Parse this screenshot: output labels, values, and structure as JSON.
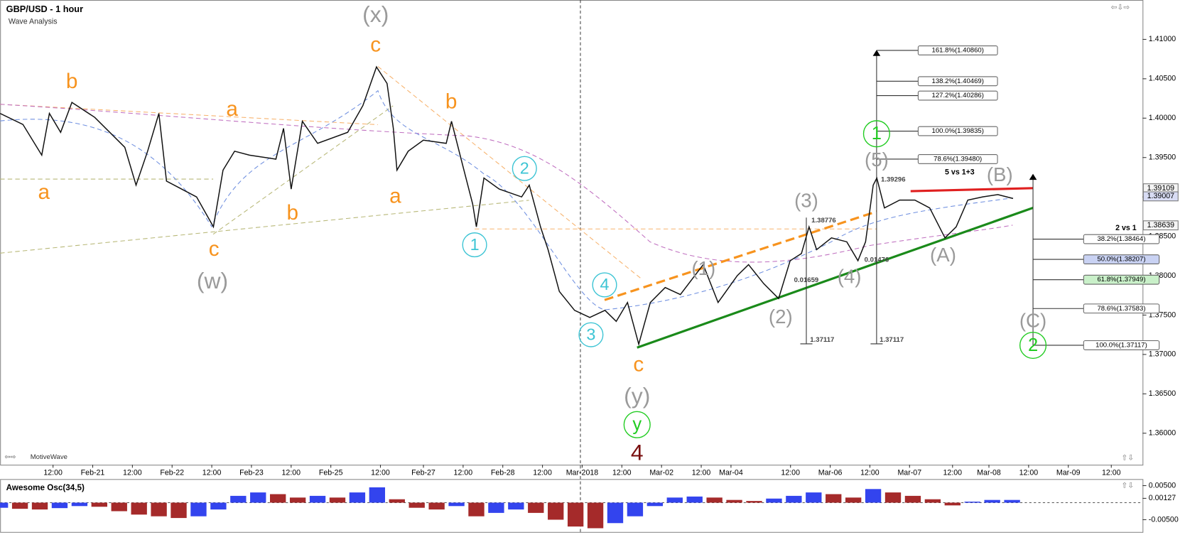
{
  "chart_data": [
    {
      "type": "line",
      "title": "GBP/USD - 1 hour",
      "subtitle": "Wave Analysis",
      "watermark": "MotiveWave",
      "x": [
        0,
        6.9,
        12.6,
        14.9,
        18.3,
        21.7,
        28.6,
        37.7,
        41.1,
        44.6,
        48,
        50.3,
        59.4,
        64.5,
        67.4,
        70.9,
        75.4,
        83.4,
        85.7,
        88,
        91.4,
        96,
        105.1,
        109.7,
        113.8,
        117,
        118.9,
        120,
        123.4,
        128,
        134.9,
        136.5,
        139.4,
        142.9,
        144,
        146.3,
        150.9,
        157.7,
        160,
        163.4,
        165.7,
        169.1,
        173.7,
        178.3,
        182.9,
        186.3,
        189.7,
        193.1,
        196.6,
        201.1,
        205.7,
        212.6,
        217.1,
        222.9,
        226.3,
        230.9,
        235.4,
        238.9,
        242.3,
        244.6,
        246.9,
        251.4,
        256,
        259.4,
        261.7,
        264,
        265.1,
        267.4,
        272,
        276.6,
        281.1,
        285.7,
        289.1,
        292.6,
        297.1,
        301.7,
        306.3
      ],
      "series": [
        {
          "color": "#111111",
          "values": [
            1.4006,
            1.3992,
            1.3953,
            1.4006,
            1.3982,
            1.402,
            1.4001,
            1.3963,
            1.3915,
            1.3958,
            1.4006,
            1.392,
            1.39,
            1.3862,
            1.3934,
            1.3958,
            1.3953,
            1.3948,
            1.3987,
            1.391,
            1.3996,
            1.3968,
            1.3982,
            1.4016,
            1.4065,
            1.4044,
            1.3987,
            1.3934,
            1.3958,
            1.3972,
            1.3968,
            1.3996,
            1.3948,
            1.3891,
            1.3862,
            1.3924,
            1.391,
            1.39,
            1.3915,
            1.3862,
            1.3833,
            1.378,
            1.3756,
            1.3747,
            1.3756,
            1.3742,
            1.3766,
            1.3713,
            1.3766,
            1.3785,
            1.3776,
            1.3814,
            1.3766,
            1.38,
            1.3814,
            1.379,
            1.3771,
            1.3819,
            1.3828,
            1.3862,
            1.3833,
            1.3848,
            1.3843,
            1.3819,
            1.3843,
            1.3915,
            1.3924,
            1.3886,
            1.3896,
            1.3896,
            1.3886,
            1.3848,
            1.3862,
            1.3896,
            1.39,
            1.3903,
            1.3898
          ]
        }
      ],
      "xlim": [
        0,
        345
      ],
      "ylim": [
        1.356,
        1.415
      ],
      "xticks": [
        {
          "value": 16,
          "label": "12:00"
        },
        {
          "value": 28,
          "label": "Feb-21"
        },
        {
          "value": 40,
          "label": "12:00"
        },
        {
          "value": 52,
          "label": "Feb-22"
        },
        {
          "value": 64,
          "label": "12:00"
        },
        {
          "value": 76,
          "label": "Feb-23"
        },
        {
          "value": 88,
          "label": "12:00"
        },
        {
          "value": 100,
          "label": "Feb-25"
        },
        {
          "value": 115,
          "label": "12:00"
        },
        {
          "value": 128,
          "label": "Feb-27"
        },
        {
          "value": 140,
          "label": "12:00"
        },
        {
          "value": 152,
          "label": "Feb-28"
        },
        {
          "value": 164,
          "label": "12:00"
        },
        {
          "value": 176,
          "label": "Mar-2018"
        },
        {
          "value": 188,
          "label": "12:00"
        },
        {
          "value": 200,
          "label": "Mar-02"
        },
        {
          "value": 212,
          "label": "12:00"
        },
        {
          "value": 221,
          "label": "Mar-04"
        },
        {
          "value": 239,
          "label": "12:00"
        },
        {
          "value": 251,
          "label": "Mar-06"
        },
        {
          "value": 263,
          "label": "12:00"
        },
        {
          "value": 275,
          "label": "Mar-07"
        },
        {
          "value": 288,
          "label": "12:00"
        },
        {
          "value": 299,
          "label": "Mar-08"
        },
        {
          "value": 311,
          "label": "12:00"
        },
        {
          "value": 323,
          "label": "Mar-09"
        },
        {
          "value": 336,
          "label": "12:00"
        }
      ],
      "yticks": [
        {
          "value": 1.36,
          "label": "1.36000"
        },
        {
          "value": 1.365,
          "label": "1.36500"
        },
        {
          "value": 1.37,
          "label": "1.37000"
        },
        {
          "value": 1.375,
          "label": "1.37500"
        },
        {
          "value": 1.38,
          "label": "1.38000"
        },
        {
          "value": 1.385,
          "label": "1.38500"
        },
        {
          "value": 1.39,
          "label": "1.39000"
        },
        {
          "value": 1.395,
          "label": "1.39500"
        },
        {
          "value": 1.4,
          "label": "1.40000"
        },
        {
          "value": 1.405,
          "label": "1.40500"
        },
        {
          "value": 1.41,
          "label": "1.41000"
        }
      ],
      "price_tags": [
        {
          "value": 1.39109,
          "label": "1.39109"
        },
        {
          "value": 1.39007,
          "label": "1.39007"
        },
        {
          "value": 1.38639,
          "label": "1.38639"
        }
      ],
      "fib_extension": [
        {
          "value": 1.4086,
          "label": "161.8%(1.40860)"
        },
        {
          "value": 1.40469,
          "label": "138.2%(1.40469)"
        },
        {
          "value": 1.40286,
          "label": "127.2%(1.40286)"
        },
        {
          "value": 1.39835,
          "label": "100.0%(1.39835)"
        },
        {
          "value": 1.3948,
          "label": "78.6%(1.39480)"
        }
      ],
      "fib_retracement": [
        {
          "value": 1.38464,
          "label": "38.2%(1.38464)"
        },
        {
          "value": 1.38207,
          "label": "50.0%(1.38207)",
          "color": "#c9d2f3"
        },
        {
          "value": 1.37949,
          "label": "61.8%(1.37949)",
          "color": "#c9f0c9"
        },
        {
          "value": 1.37583,
          "label": "78.6%(1.37583)"
        },
        {
          "value": 1.37117,
          "label": "100.0%(1.37117)"
        }
      ],
      "annotations": [
        {
          "text": "(x)",
          "color": "#9a9a9a"
        },
        {
          "text": "b",
          "color": "#f7931e"
        },
        {
          "text": "a",
          "color": "#f7931e"
        },
        {
          "text": "a",
          "color": "#f7931e"
        },
        {
          "text": "b",
          "color": "#f7931e"
        },
        {
          "text": "c",
          "color": "#f7931e"
        },
        {
          "text": "(w)",
          "color": "#9a9a9a"
        },
        {
          "text": "c",
          "color": "#f7931e"
        },
        {
          "text": "a",
          "color": "#f7931e"
        },
        {
          "text": "b",
          "color": "#f7931e"
        },
        {
          "text": "2",
          "color": "#3cc4d4",
          "circled": true
        },
        {
          "text": "1",
          "color": "#3cc4d4",
          "circled": true
        },
        {
          "text": "4",
          "color": "#3cc4d4",
          "circled": true
        },
        {
          "text": "3",
          "color": "#3cc4d4",
          "circled": true
        },
        {
          "text": "c",
          "color": "#f7931e"
        },
        {
          "text": "(y)",
          "color": "#9a9a9a"
        },
        {
          "text": "y",
          "color": "#22cc22",
          "circled": true
        },
        {
          "text": "4",
          "color": "#7a1010"
        },
        {
          "text": "(1)",
          "color": "#9a9a9a"
        },
        {
          "text": "(2)",
          "color": "#9a9a9a"
        },
        {
          "text": "(3)",
          "color": "#9a9a9a"
        },
        {
          "text": "(4)",
          "color": "#9a9a9a"
        },
        {
          "text": "(5)",
          "color": "#9a9a9a"
        },
        {
          "text": "1",
          "color": "#22cc22",
          "circled": true
        },
        {
          "text": "(A)",
          "color": "#9a9a9a"
        },
        {
          "text": "(B)",
          "color": "#9a9a9a"
        },
        {
          "text": "(C)",
          "color": "#9a9a9a"
        },
        {
          "text": "2",
          "color": "#22cc22",
          "circled": true
        },
        {
          "text": "5 vs 1+3",
          "color": "#000000"
        },
        {
          "text": "2 vs 1",
          "color": "#000000"
        },
        {
          "text": "1.38776",
          "color": "#444444"
        },
        {
          "text": "0.01659",
          "color": "#444444"
        },
        {
          "text": "1.37117",
          "color": "#444444"
        },
        {
          "text": "1.39296",
          "color": "#444444"
        },
        {
          "text": "0.01476",
          "color": "#444444"
        },
        {
          "text": "1.37117",
          "color": "#444444"
        }
      ]
    },
    {
      "type": "bar",
      "title": "Awesome Osc(34,5)",
      "up_color": "#3344ee",
      "down_color": "#a52a2a",
      "x": [
        0,
        6,
        12,
        18,
        24,
        30,
        36,
        42,
        48,
        54,
        60,
        66,
        72,
        78,
        84,
        90,
        96,
        102,
        108,
        114,
        120,
        126,
        132,
        138,
        144,
        150,
        156,
        162,
        168,
        174,
        180,
        186,
        192,
        198,
        204,
        210,
        216,
        222,
        228,
        234,
        240,
        246,
        252,
        258,
        264,
        270,
        276,
        282,
        288,
        294,
        300,
        306
      ],
      "values": [
        -0.0015,
        -0.0018,
        -0.002,
        -0.0016,
        -0.001,
        -0.0012,
        -0.0025,
        -0.0035,
        -0.004,
        -0.0045,
        -0.004,
        -0.002,
        0.002,
        0.003,
        0.0025,
        0.0015,
        0.002,
        0.0015,
        0.003,
        0.0045,
        0.001,
        -0.0015,
        -0.002,
        -0.001,
        -0.004,
        -0.003,
        -0.002,
        -0.003,
        -0.005,
        -0.007,
        -0.0075,
        -0.006,
        -0.004,
        -0.001,
        0.0015,
        0.0018,
        0.0015,
        0.0008,
        0.0005,
        0.0012,
        0.002,
        0.003,
        0.0025,
        0.0015,
        0.004,
        0.003,
        0.002,
        0.001,
        -0.0008,
        0.0003,
        0.0008,
        0.0008
      ],
      "xlim": [
        0,
        345
      ],
      "ylim": [
        -0.0086,
        0.0067
      ],
      "yticks": [
        {
          "value": 0.005,
          "label": "0.00500"
        },
        {
          "value": 0.00127,
          "label": "0.00127"
        },
        {
          "value": -0.005,
          "label": "-0.00500"
        }
      ]
    }
  ]
}
